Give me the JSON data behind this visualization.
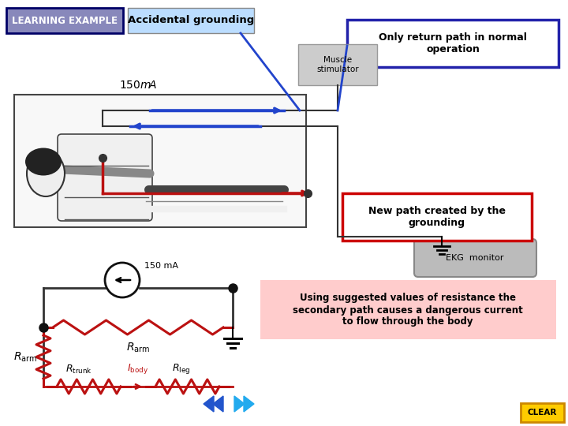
{
  "bg_color": "#ffffff",
  "title": "LEARNING EXAMPLE",
  "label_accidental": "Accidental grounding",
  "label_return_path": "Only return path in normal\noperation",
  "label_new_path": "New path created by the\ngrounding",
  "label_using": "Using suggested values of resistance the\nsecondary path causes a dangerous current\nto flow through the body",
  "label_150mA_top": "150mA",
  "label_150mA_circuit": "150 mA",
  "label_muscle": "Muscle\nstimulator",
  "label_ekg": "EKG  monitor",
  "box_learning_bg": "#8888bb",
  "box_learning_edge": "#000066",
  "box_accidental_bg": "#bbddff",
  "box_return_edge": "#2222aa",
  "box_newpath_edge": "#cc0000",
  "box_using_bg": "#ffcccc",
  "circuit_color": "#bb1111",
  "arrow_blue": "#2244cc",
  "wire_color": "#222222",
  "dot_color": "#111111",
  "nav_color": "#2255cc",
  "clear_bg": "#ffcc00",
  "clear_text": "CLEAR",
  "ekg_bg": "#bbbbbb",
  "muscle_bg": "#cccccc"
}
